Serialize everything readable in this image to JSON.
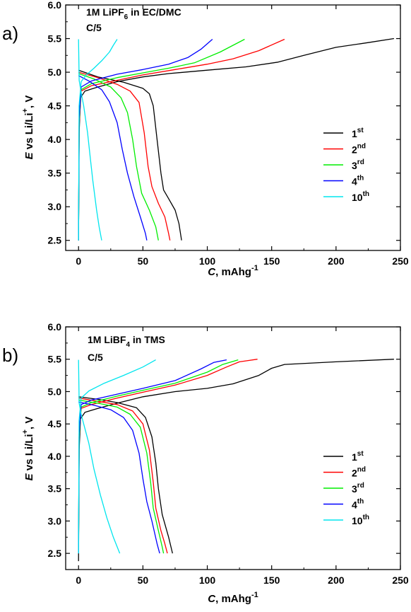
{
  "chart_data": [
    {
      "type": "line",
      "panel_label": "a)",
      "annotation": {
        "line1": "1M LiPF",
        "sub": "6",
        "line1b": " in EC/DMC",
        "line2": "C/5"
      },
      "xlabel": {
        "italic": "C",
        "rest": ", mAhg",
        "sup": "-1"
      },
      "ylabel": {
        "italic": "E",
        "rest1": " vs Li/Li",
        "sup": "+",
        "rest2": ", V"
      },
      "xlim": [
        -10,
        250
      ],
      "ylim": [
        2.35,
        6.0
      ],
      "x_ticks": [
        0,
        50,
        100,
        150,
        200,
        250
      ],
      "y_ticks": [
        "2.5",
        "3.0",
        "3.5",
        "4.0",
        "4.5",
        "5.0",
        "5.5",
        "6.0"
      ],
      "grid": false,
      "legend_position": "right",
      "series": [
        {
          "name": "1",
          "name_sup": "st",
          "color": "#000000",
          "charge": [
            [
              0,
              2.5
            ],
            [
              0.5,
              4.1
            ],
            [
              1.5,
              4.62
            ],
            [
              5,
              4.72
            ],
            [
              15,
              4.78
            ],
            [
              30,
              4.86
            ],
            [
              50,
              4.93
            ],
            [
              70,
              4.98
            ],
            [
              100,
              5.03
            ],
            [
              130,
              5.08
            ],
            [
              155,
              5.15
            ],
            [
              175,
              5.25
            ],
            [
              200,
              5.37
            ],
            [
              225,
              5.44
            ],
            [
              245,
              5.5
            ]
          ],
          "discharge": [
            [
              0,
              5.03
            ],
            [
              15,
              4.93
            ],
            [
              35,
              4.85
            ],
            [
              50,
              4.76
            ],
            [
              55,
              4.68
            ],
            [
              58,
              4.5
            ],
            [
              61,
              4.0
            ],
            [
              64,
              3.5
            ],
            [
              66,
              3.25
            ],
            [
              70,
              3.12
            ],
            [
              75,
              2.95
            ],
            [
              78,
              2.75
            ],
            [
              80,
              2.5
            ]
          ]
        },
        {
          "name": "2",
          "name_sup": "nd",
          "color": "#ff0000",
          "charge": [
            [
              0,
              2.5
            ],
            [
              0.5,
              4.2
            ],
            [
              2,
              4.72
            ],
            [
              10,
              4.8
            ],
            [
              30,
              4.88
            ],
            [
              50,
              4.96
            ],
            [
              75,
              5.04
            ],
            [
              100,
              5.12
            ],
            [
              120,
              5.2
            ],
            [
              140,
              5.32
            ],
            [
              160,
              5.49
            ]
          ],
          "discharge": [
            [
              0,
              5.0
            ],
            [
              15,
              4.92
            ],
            [
              30,
              4.82
            ],
            [
              40,
              4.72
            ],
            [
              47,
              4.55
            ],
            [
              51,
              4.1
            ],
            [
              54,
              3.6
            ],
            [
              57,
              3.3
            ],
            [
              62,
              3.05
            ],
            [
              67,
              2.85
            ],
            [
              70,
              2.6
            ],
            [
              71,
              2.5
            ]
          ]
        },
        {
          "name": "3",
          "name_sup": "rd",
          "color": "#00ee00",
          "charge": [
            [
              0,
              2.5
            ],
            [
              0.5,
              4.25
            ],
            [
              2,
              4.74
            ],
            [
              10,
              4.83
            ],
            [
              30,
              4.92
            ],
            [
              50,
              4.99
            ],
            [
              70,
              5.06
            ],
            [
              90,
              5.14
            ],
            [
              110,
              5.3
            ],
            [
              129,
              5.49
            ]
          ],
          "discharge": [
            [
              0,
              4.98
            ],
            [
              12,
              4.9
            ],
            [
              25,
              4.78
            ],
            [
              33,
              4.62
            ],
            [
              38,
              4.4
            ],
            [
              42,
              4.0
            ],
            [
              45,
              3.6
            ],
            [
              49,
              3.2
            ],
            [
              55,
              2.95
            ],
            [
              60,
              2.7
            ],
            [
              62,
              2.5
            ]
          ]
        },
        {
          "name": "4",
          "name_sup": "th",
          "color": "#0000ff",
          "charge": [
            [
              0,
              2.5
            ],
            [
              0.5,
              4.3
            ],
            [
              2,
              4.78
            ],
            [
              10,
              4.87
            ],
            [
              30,
              4.97
            ],
            [
              50,
              5.04
            ],
            [
              70,
              5.12
            ],
            [
              85,
              5.22
            ],
            [
              95,
              5.34
            ],
            [
              104,
              5.49
            ]
          ],
          "discharge": [
            [
              0,
              4.95
            ],
            [
              8,
              4.87
            ],
            [
              18,
              4.74
            ],
            [
              24,
              4.56
            ],
            [
              30,
              4.25
            ],
            [
              34,
              3.85
            ],
            [
              38,
              3.5
            ],
            [
              43,
              3.15
            ],
            [
              48,
              2.85
            ],
            [
              52,
              2.6
            ],
            [
              53,
              2.5
            ]
          ]
        },
        {
          "name": "10",
          "name_sup": "th",
          "color": "#00e5ee",
          "charge": [
            [
              0,
              2.5
            ],
            [
              0.4,
              4.5
            ],
            [
              2,
              4.86
            ],
            [
              6,
              4.96
            ],
            [
              12,
              5.06
            ],
            [
              18,
              5.17
            ],
            [
              24,
              5.3
            ],
            [
              27,
              5.4
            ],
            [
              30,
              5.49
            ]
          ],
          "discharge": [
            [
              0,
              5.49
            ],
            [
              0.5,
              4.88
            ],
            [
              2,
              4.7
            ],
            [
              4,
              4.5
            ],
            [
              7,
              4.1
            ],
            [
              9,
              3.75
            ],
            [
              11,
              3.4
            ],
            [
              14,
              2.95
            ],
            [
              16,
              2.7
            ],
            [
              18,
              2.5
            ]
          ]
        }
      ]
    },
    {
      "type": "line",
      "panel_label": "b)",
      "annotation": {
        "line1": "1M  LiBF",
        "sub": "4",
        "line1b": " in TMS",
        "line2": "C/5"
      },
      "xlabel": {
        "italic": "C",
        "rest": ", mAhg",
        "sup": "-1"
      },
      "ylabel": {
        "italic": "E",
        "rest1": " vs Li/Li",
        "sup": "+",
        "rest2": ", V"
      },
      "xlim": [
        -10,
        250
      ],
      "ylim": [
        2.25,
        6.0
      ],
      "x_ticks": [
        0,
        50,
        100,
        150,
        200,
        250
      ],
      "y_ticks": [
        "2.5",
        "3.0",
        "3.5",
        "4.0",
        "4.5",
        "5.0",
        "5.5",
        "6.0"
      ],
      "grid": false,
      "legend_position": "right",
      "series": [
        {
          "name": "1",
          "name_sup": "st",
          "color": "#000000",
          "charge": [
            [
              0,
              2.38
            ],
            [
              0.5,
              4.1
            ],
            [
              1.5,
              4.58
            ],
            [
              5,
              4.68
            ],
            [
              15,
              4.74
            ],
            [
              30,
              4.82
            ],
            [
              50,
              4.92
            ],
            [
              75,
              5.0
            ],
            [
              100,
              5.05
            ],
            [
              120,
              5.12
            ],
            [
              140,
              5.25
            ],
            [
              150,
              5.36
            ],
            [
              160,
              5.42
            ],
            [
              200,
              5.46
            ],
            [
              245,
              5.5
            ]
          ],
          "discharge": [
            [
              0,
              4.92
            ],
            [
              15,
              4.88
            ],
            [
              30,
              4.83
            ],
            [
              45,
              4.75
            ],
            [
              52,
              4.6
            ],
            [
              57,
              4.3
            ],
            [
              60,
              3.9
            ],
            [
              62,
              3.5
            ],
            [
              65,
              3.1
            ],
            [
              70,
              2.75
            ],
            [
              73,
              2.5
            ]
          ]
        },
        {
          "name": "2",
          "name_sup": "nd",
          "color": "#ff0000",
          "charge": [
            [
              0,
              2.5
            ],
            [
              0.5,
              4.3
            ],
            [
              2,
              4.74
            ],
            [
              10,
              4.8
            ],
            [
              30,
              4.9
            ],
            [
              50,
              4.99
            ],
            [
              75,
              5.1
            ],
            [
              100,
              5.25
            ],
            [
              115,
              5.38
            ],
            [
              125,
              5.46
            ],
            [
              139,
              5.5
            ]
          ],
          "discharge": [
            [
              0,
              4.9
            ],
            [
              15,
              4.85
            ],
            [
              30,
              4.8
            ],
            [
              42,
              4.7
            ],
            [
              50,
              4.5
            ],
            [
              55,
              4.1
            ],
            [
              58,
              3.6
            ],
            [
              60,
              3.2
            ],
            [
              64,
              2.85
            ],
            [
              67,
              2.65
            ],
            [
              69,
              2.5
            ]
          ]
        },
        {
          "name": "3",
          "name_sup": "rd",
          "color": "#00ee00",
          "charge": [
            [
              0,
              2.5
            ],
            [
              0.5,
              4.3
            ],
            [
              2,
              4.76
            ],
            [
              10,
              4.83
            ],
            [
              30,
              4.93
            ],
            [
              50,
              5.02
            ],
            [
              75,
              5.13
            ],
            [
              100,
              5.3
            ],
            [
              112,
              5.42
            ],
            [
              124,
              5.49
            ]
          ],
          "discharge": [
            [
              0,
              4.87
            ],
            [
              15,
              4.82
            ],
            [
              30,
              4.76
            ],
            [
              40,
              4.65
            ],
            [
              48,
              4.45
            ],
            [
              53,
              4.05
            ],
            [
              56,
              3.6
            ],
            [
              58,
              3.2
            ],
            [
              62,
              2.85
            ],
            [
              65,
              2.6
            ],
            [
              66,
              2.5
            ]
          ]
        },
        {
          "name": "4",
          "name_sup": "th",
          "color": "#0000ff",
          "charge": [
            [
              0,
              2.5
            ],
            [
              0.5,
              4.35
            ],
            [
              2,
              4.8
            ],
            [
              10,
              4.87
            ],
            [
              30,
              4.96
            ],
            [
              50,
              5.05
            ],
            [
              75,
              5.17
            ],
            [
              95,
              5.35
            ],
            [
              105,
              5.45
            ],
            [
              115,
              5.49
            ]
          ],
          "discharge": [
            [
              0,
              4.84
            ],
            [
              12,
              4.79
            ],
            [
              25,
              4.72
            ],
            [
              35,
              4.6
            ],
            [
              42,
              4.4
            ],
            [
              47,
              4.05
            ],
            [
              50,
              3.65
            ],
            [
              53,
              3.3
            ],
            [
              57,
              3.0
            ],
            [
              61,
              2.65
            ],
            [
              63,
              2.5
            ]
          ]
        },
        {
          "name": "10",
          "name_sup": "th",
          "color": "#00e5ee",
          "charge": [
            [
              0,
              2.5
            ],
            [
              0.4,
              4.55
            ],
            [
              2,
              4.9
            ],
            [
              8,
              5.01
            ],
            [
              20,
              5.13
            ],
            [
              35,
              5.25
            ],
            [
              50,
              5.38
            ],
            [
              60,
              5.49
            ]
          ],
          "discharge": [
            [
              0,
              5.49
            ],
            [
              0.5,
              4.82
            ],
            [
              2,
              4.65
            ],
            [
              4,
              4.5
            ],
            [
              8,
              4.2
            ],
            [
              12,
              3.8
            ],
            [
              17,
              3.4
            ],
            [
              22,
              3.05
            ],
            [
              27,
              2.75
            ],
            [
              32,
              2.5
            ]
          ]
        }
      ]
    }
  ]
}
